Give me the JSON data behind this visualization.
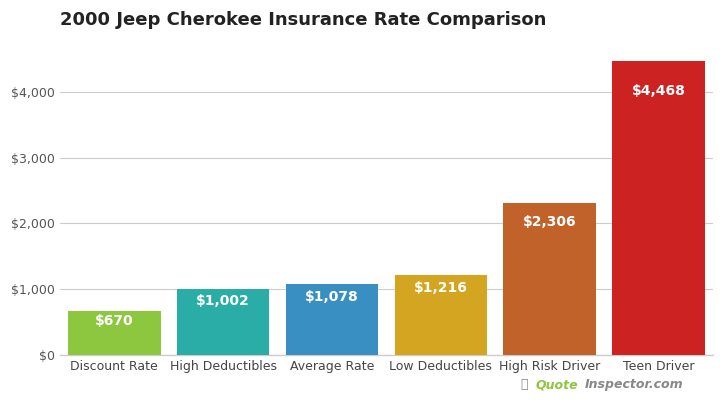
{
  "title": "2000 Jeep Cherokee Insurance Rate Comparison",
  "categories": [
    "Discount Rate",
    "High Deductibles",
    "Average Rate",
    "Low Deductibles",
    "High Risk Driver",
    "Teen Driver"
  ],
  "values": [
    670,
    1002,
    1078,
    1216,
    2306,
    4468
  ],
  "labels": [
    "$670",
    "$1,002",
    "$1,078",
    "$1,216",
    "$2,306",
    "$4,468"
  ],
  "bar_colors": [
    "#8dc63f",
    "#2aada6",
    "#3a8fc2",
    "#d4a520",
    "#c0622a",
    "#cc2222"
  ],
  "background_color": "#ffffff",
  "grid_color": "#cccccc",
  "label_color": "#ffffff",
  "ylim": [
    0,
    4800
  ],
  "yticks": [
    0,
    1000,
    2000,
    3000,
    4000
  ],
  "ytick_labels": [
    "$0",
    "$1,000",
    "$2,000",
    "$3,000",
    "$4,000"
  ],
  "title_fontsize": 13,
  "label_fontsize": 10,
  "tick_fontsize": 9,
  "watermark_quote": "Quote",
  "watermark_rest": "Inspector.com",
  "figsize": [
    7.24,
    4.0
  ],
  "dpi": 100
}
